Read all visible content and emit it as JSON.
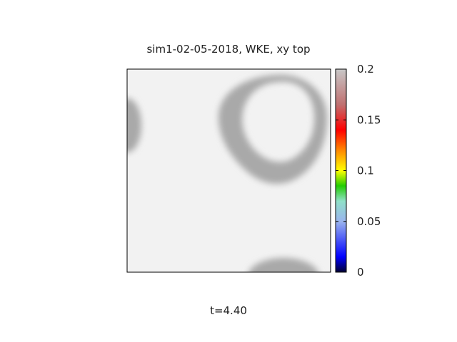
{
  "chart_data": {
    "type": "heatmap",
    "title": "sim1-02-05-2018, WKE, xy top",
    "annotation": "t=4.40",
    "colorbar": {
      "range": [
        0,
        0.2
      ],
      "ticks": [
        "0",
        "0.05",
        "0.1",
        "0.15",
        "0.2"
      ],
      "tick_values": [
        0,
        0.05,
        0.1,
        0.15,
        0.2
      ],
      "colormap": [
        {
          "value": 0.0,
          "color": "#000033"
        },
        {
          "value": 0.015,
          "color": "#0000ff"
        },
        {
          "value": 0.05,
          "color": "#9ab4ee"
        },
        {
          "value": 0.07,
          "color": "#8fe0c8"
        },
        {
          "value": 0.085,
          "color": "#22cc00"
        },
        {
          "value": 0.1,
          "color": "#ffff00"
        },
        {
          "value": 0.12,
          "color": "#ff8800"
        },
        {
          "value": 0.14,
          "color": "#ff0000"
        },
        {
          "value": 0.165,
          "color": "#c07070"
        },
        {
          "value": 0.2,
          "color": "#c8c8c8"
        }
      ]
    },
    "field": {
      "background_value": 0.2,
      "background_color": "#f2f2f2",
      "features": [
        {
          "kind": "ring",
          "location": "top-right",
          "value": 0.2,
          "color": "#a9a9a9"
        },
        {
          "kind": "partial-blob",
          "location": "left-edge",
          "value": 0.2,
          "color": "#a9a9a9"
        },
        {
          "kind": "partial-blob",
          "location": "bottom-edge",
          "value": 0.2,
          "color": "#a9a9a9"
        }
      ]
    }
  }
}
